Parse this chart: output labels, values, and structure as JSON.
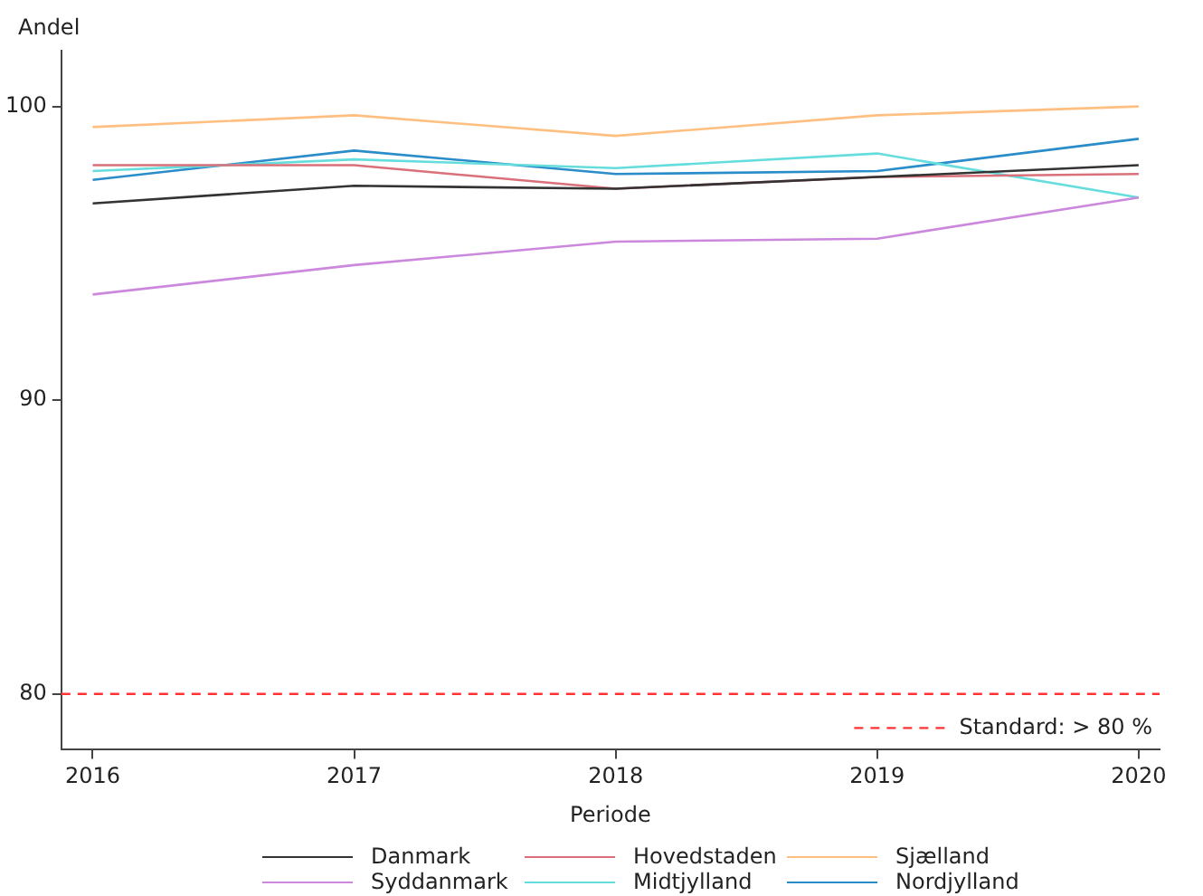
{
  "chart_data": {
    "type": "line",
    "ylabel": "Andel",
    "xlabel": "Periode",
    "x": [
      2016,
      2017,
      2018,
      2019,
      2020
    ],
    "xlim": [
      2015.88,
      2020.08
    ],
    "xticks": [
      2016,
      2017,
      2018,
      2019,
      2020
    ],
    "ylim": [
      78.1,
      101.9
    ],
    "yticks": [
      80,
      90,
      100
    ],
    "series": [
      {
        "name": "Danmark",
        "color": "#333333",
        "values": [
          96.7,
          97.3,
          97.2,
          97.6,
          98.0
        ]
      },
      {
        "name": "Hovedstaden",
        "color": "#d9707a",
        "values": [
          98.0,
          98.0,
          97.2,
          97.6,
          97.7
        ]
      },
      {
        "name": "Sjælland",
        "color": "#ffbf80",
        "values": [
          99.3,
          99.7,
          99.0,
          99.7,
          100.0
        ]
      },
      {
        "name": "Syddanmark",
        "color": "#cc88dd",
        "values": [
          93.6,
          94.6,
          95.4,
          95.5,
          96.9
        ]
      },
      {
        "name": "Midtjylland",
        "color": "#66dddd",
        "values": [
          97.8,
          98.2,
          97.9,
          98.4,
          96.9
        ]
      },
      {
        "name": "Nordjylland",
        "color": "#2a8cc8",
        "values": [
          97.5,
          98.5,
          97.7,
          97.8,
          98.9
        ]
      }
    ],
    "ref_lines": [
      {
        "axis": "y",
        "value": 80,
        "label": "Standard: > 80 %",
        "color": "#ff3333",
        "line_style": "dashed"
      }
    ],
    "grid": false,
    "legend": "bottom",
    "marker": "none",
    "line_style": "solid"
  }
}
